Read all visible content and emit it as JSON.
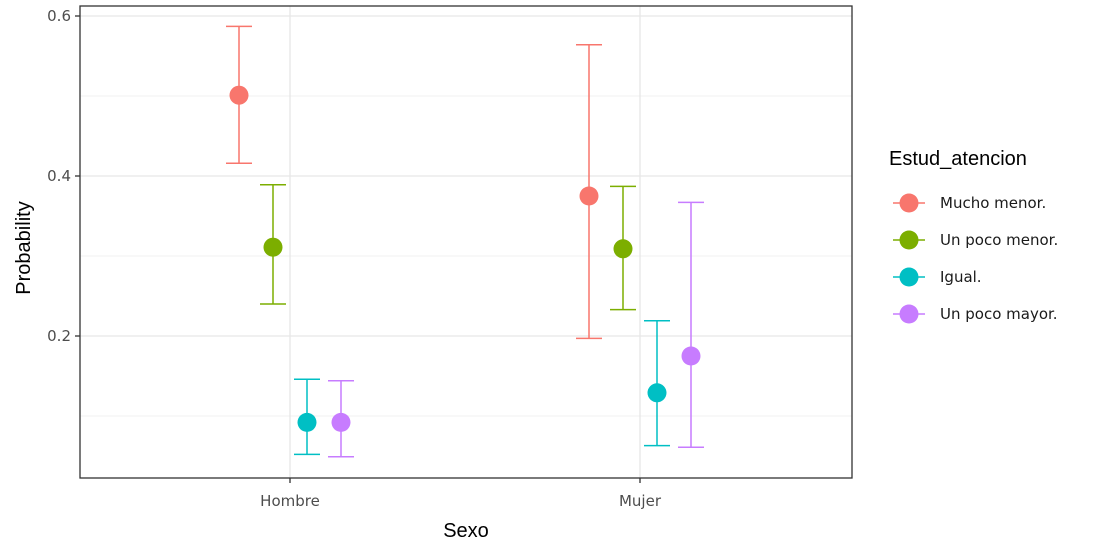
{
  "chart_data": {
    "type": "scatter",
    "title": "",
    "xlabel": "Sexo",
    "ylabel": "Probability",
    "categories": [
      "Hombre",
      "Mujer"
    ],
    "ylim": [
      0.0225,
      0.6125
    ],
    "y_ticks": [
      0.2,
      0.4,
      0.6
    ],
    "y_tick_labels": [
      "0.2",
      "0.4",
      "0.6"
    ],
    "grid": true,
    "legend": {
      "title": "Estud_atencion",
      "position": "right"
    },
    "series": [
      {
        "name": "Mucho menor.",
        "color": "#F8766D",
        "values": [
          0.501,
          0.375
        ],
        "lower": [
          0.416,
          0.197
        ],
        "upper": [
          0.587,
          0.564
        ]
      },
      {
        "name": "Un poco menor.",
        "color": "#7CAE00",
        "values": [
          0.311,
          0.309
        ],
        "lower": [
          0.24,
          0.233
        ],
        "upper": [
          0.389,
          0.387
        ]
      },
      {
        "name": "Igual.",
        "color": "#00BFC4",
        "values": [
          0.092,
          0.129
        ],
        "lower": [
          0.052,
          0.063
        ],
        "upper": [
          0.146,
          0.219
        ]
      },
      {
        "name": "Un poco mayor.",
        "color": "#C77CFF",
        "values": [
          0.092,
          0.175
        ],
        "lower": [
          0.049,
          0.061
        ],
        "upper": [
          0.144,
          0.367
        ]
      }
    ]
  }
}
